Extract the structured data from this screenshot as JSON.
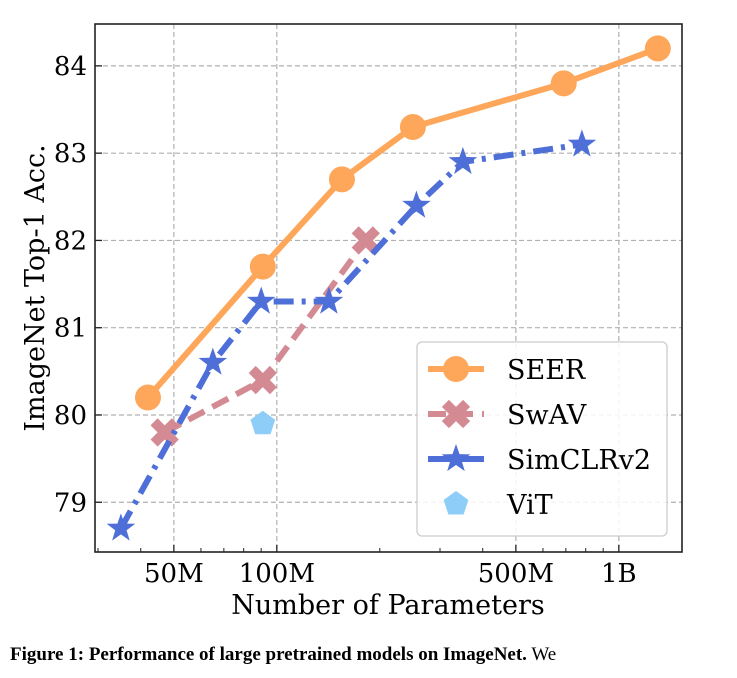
{
  "chart_data": {
    "type": "line",
    "title": "",
    "xlabel": "Number of Parameters",
    "ylabel": "ImageNet Top-1 Acc.",
    "xscale": "log",
    "xlim": [
      29400000,
      1530000000
    ],
    "ylim": [
      78.43,
      84.48
    ],
    "xticks": [
      {
        "value": 50000000,
        "label": "50M"
      },
      {
        "value": 100000000,
        "label": "100M"
      },
      {
        "value": 500000000,
        "label": "500M"
      },
      {
        "value": 1000000000,
        "label": "1B"
      }
    ],
    "yticks": [
      {
        "value": 79,
        "label": "79"
      },
      {
        "value": 80,
        "label": "80"
      },
      {
        "value": 81,
        "label": "81"
      },
      {
        "value": 82,
        "label": "82"
      },
      {
        "value": 83,
        "label": "83"
      },
      {
        "value": 84,
        "label": "84"
      }
    ],
    "grid": true,
    "legend_position": "bottom-right",
    "series": [
      {
        "name": "SEER",
        "color": "#fea75a",
        "marker": "circle",
        "linestyle": "solid",
        "x": [
          42000000,
          91000000,
          155000000,
          250000000,
          690000000,
          1300000000
        ],
        "y": [
          80.2,
          81.7,
          82.7,
          83.3,
          83.8,
          84.2
        ]
      },
      {
        "name": "SwAV",
        "color": "#d48a93",
        "marker": "x",
        "linestyle": "dashed",
        "x": [
          47000000,
          91000000,
          182000000
        ],
        "y": [
          79.8,
          80.4,
          82.0
        ]
      },
      {
        "name": "SimCLRv2",
        "color": "#4e6fd8",
        "marker": "star",
        "linestyle": "dashdot",
        "x": [
          35000000,
          65000000,
          90000000,
          142000000,
          256000000,
          350000000,
          780000000
        ],
        "y": [
          78.7,
          80.6,
          81.3,
          81.3,
          82.4,
          82.9,
          83.1
        ]
      },
      {
        "name": "ViT",
        "color": "#8fcdf9",
        "marker": "pentagon",
        "linestyle": "none",
        "x": [
          91000000
        ],
        "y": [
          79.9
        ]
      }
    ]
  },
  "caption": {
    "label": "Figure 1:",
    "bold_text": "Performance of large pretrained models on ImageNet.",
    "text": "We"
  }
}
